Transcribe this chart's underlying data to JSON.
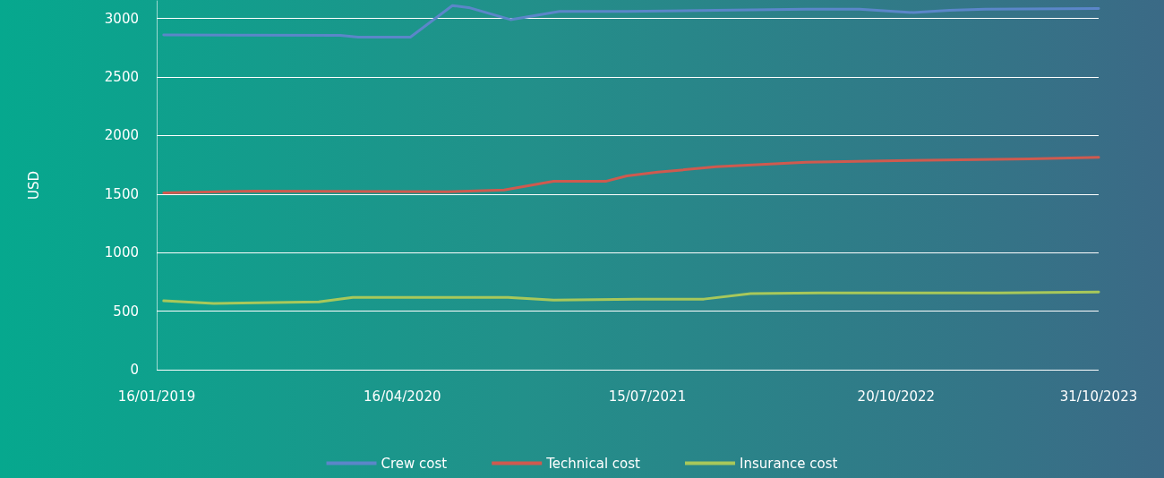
{
  "chart_data": {
    "type": "line",
    "ylabel": "USD",
    "xlim": [
      "2019-01-16",
      "2023-10-31"
    ],
    "xticks": [
      {
        "value": "2019-01-16",
        "label": "16/01/2019"
      },
      {
        "value": "2020-04-16",
        "label": "16/04/2020"
      },
      {
        "value": "2021-07-15",
        "label": "15/07/2021"
      },
      {
        "value": "2022-10-20",
        "label": "20/10/2022"
      },
      {
        "value": "2023-10-31",
        "label": "31/10/2023"
      }
    ],
    "ylim": [
      0,
      3150
    ],
    "yticks": [
      0,
      500,
      1000,
      1500,
      2000,
      2500,
      3000
    ],
    "grid": "y",
    "legend": "bottom",
    "marker": "none",
    "line_style": "solid",
    "series": [
      {
        "name": "Crew cost",
        "color": "#5b86c9",
        "x": [
          "2019-01-29",
          "2019-12-23",
          "2020-01-25",
          "2020-05-01",
          "2020-07-18",
          "2020-08-20",
          "2020-11-03",
          "2021-02-02",
          "2021-06-07",
          "2021-11-20",
          "2022-05-06",
          "2022-08-13",
          "2022-11-21",
          "2023-01-27",
          "2023-04-03",
          "2023-10-31"
        ],
        "values": [
          2860,
          2855,
          2840,
          2840,
          3110,
          3090,
          2990,
          3060,
          3060,
          3070,
          3080,
          3080,
          3050,
          3070,
          3080,
          3085
        ]
      },
      {
        "name": "Technical cost",
        "color": "#cf5a4f",
        "x": [
          "2019-01-29",
          "2019-07-16",
          "2020-07-09",
          "2020-10-22",
          "2021-01-22",
          "2021-04-30",
          "2021-06-07",
          "2021-08-04",
          "2021-11-20",
          "2022-05-06",
          "2022-10-19",
          "2023-06-25",
          "2023-10-31"
        ],
        "values": [
          1510,
          1525,
          1520,
          1535,
          1610,
          1610,
          1655,
          1687,
          1733,
          1771,
          1786,
          1800,
          1813
        ]
      },
      {
        "name": "Insurance cost",
        "color": "#a8c85a",
        "x": [
          "2019-01-29",
          "2019-05-02",
          "2019-11-13",
          "2020-01-15",
          "2020-10-29",
          "2021-01-22",
          "2021-06-24",
          "2021-10-28",
          "2022-01-23",
          "2022-05-29",
          "2023-04-27",
          "2023-10-31"
        ],
        "values": [
          588,
          565,
          580,
          618,
          618,
          595,
          603,
          603,
          649,
          656,
          656,
          664
        ]
      }
    ]
  }
}
